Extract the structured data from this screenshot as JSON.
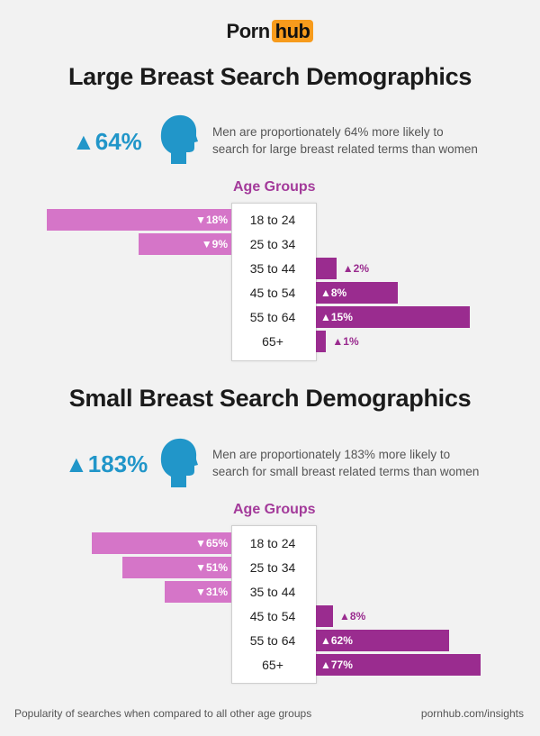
{
  "brand": {
    "part1": "Porn",
    "part2": "hub"
  },
  "footer": {
    "note": "Popularity of searches when compared to all other age groups",
    "url": "pornhub.com/insights"
  },
  "colors": {
    "accent_blue": "#2196c9",
    "neg_bar": "#d575c8",
    "pos_bar": "#9a2c8f",
    "header_purple": "#a33a9a",
    "brand_orange": "#f79b1c"
  },
  "chart_data": [
    {
      "type": "bar",
      "title": "Large Breast Search Demographics",
      "stat": "▲64%",
      "description": [
        "Men are proportionately 64% more likely to",
        "search for large breast related terms than women"
      ],
      "group_header": "Age Groups",
      "categories": [
        "18 to 24",
        "25 to 34",
        "35 to 44",
        "45 to 54",
        "55 to 64",
        "65+"
      ],
      "values": [
        -18,
        -9,
        2,
        8,
        15,
        1
      ],
      "value_labels": [
        "▼18%",
        "▼9%",
        "▲2%",
        "▲8%",
        "▲15%",
        "▲1%"
      ],
      "units": "%"
    },
    {
      "type": "bar",
      "title": "Small Breast Search Demographics",
      "stat": "▲183%",
      "description": [
        "Men are proportionately 183% more likely to",
        "search for small breast related terms than women"
      ],
      "group_header": "Age Groups",
      "categories": [
        "18 to 24",
        "25 to 34",
        "35 to 44",
        "45 to 54",
        "55 to 64",
        "65+"
      ],
      "values": [
        -65,
        -51,
        -31,
        8,
        62,
        77
      ],
      "value_labels": [
        "▼65%",
        "▼51%",
        "▼31%",
        "▲8%",
        "▲62%",
        "▲77%"
      ],
      "units": "%"
    }
  ]
}
